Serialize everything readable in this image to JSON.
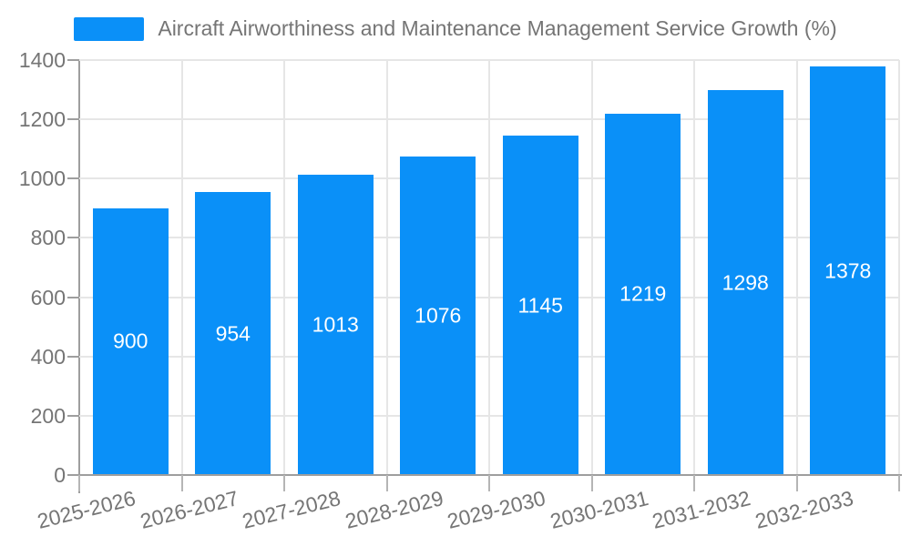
{
  "chart_data": {
    "type": "bar",
    "title": "Aircraft Airworthiness and Maintenance Management Service Growth (%)",
    "legend": {
      "label": "Aircraft Airworthiness and Maintenance Management Service Growth (%)",
      "position": "top"
    },
    "categories": [
      "2025-2026",
      "2026-2027",
      "2027-2028",
      "2028-2029",
      "2029-2030",
      "2030-2031",
      "2031-2032",
      "2032-2033"
    ],
    "values": [
      900,
      954,
      1013,
      1076,
      1145,
      1219,
      1298,
      1378
    ],
    "value_labels": [
      "900",
      "954",
      "1013",
      "1076",
      "1145",
      "1219",
      "1298",
      "1378"
    ],
    "xlabel": "",
    "ylabel": "",
    "ylim": [
      0,
      1400
    ],
    "yticks": [
      0,
      200,
      400,
      600,
      800,
      1000,
      1200,
      1400
    ],
    "ytick_labels": [
      "0",
      "200",
      "400",
      "600",
      "800",
      "1000",
      "1200",
      "1400"
    ],
    "grid": true,
    "colors": {
      "bar": "#0a90f8",
      "bar_value_text": "#ffffff",
      "axis_text": "#757575",
      "legend_text": "#757575",
      "grid_line": "#e6e6e6",
      "axis_line": "#9e9e9e",
      "background": "#ffffff"
    }
  }
}
